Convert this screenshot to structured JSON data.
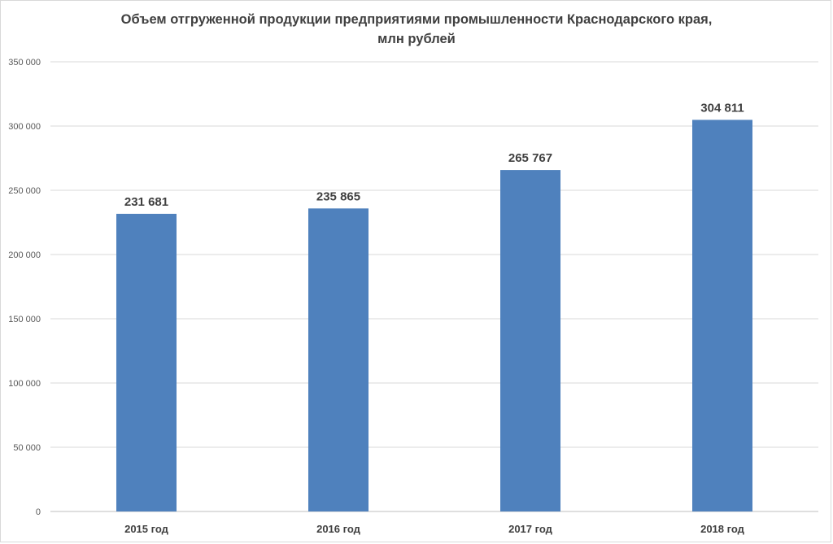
{
  "title": "Объем отгруженной продукции  предприятиями промышленности Краснодарского края,",
  "subtitle": "млн рублей",
  "colors": {
    "bar": "#4f81bd",
    "grid": "#d9d9d9",
    "axis": "#bfbfbf"
  },
  "chart_data": {
    "type": "bar",
    "title": "Объем отгруженной продукции  предприятиями промышленности Краснодарского края, млн рублей",
    "categories": [
      "2015 год",
      "2016 год",
      "2017 год",
      "2018 год"
    ],
    "values": [
      231681,
      235865,
      265767,
      304811
    ],
    "data_labels": [
      "231 681",
      "235 865",
      "265 767",
      "304 811"
    ],
    "ylim": [
      0,
      350000
    ],
    "yticks": [
      0,
      50000,
      100000,
      150000,
      200000,
      250000,
      300000,
      350000
    ],
    "ytick_labels": [
      "0",
      "50 000",
      "100 000",
      "150 000",
      "200 000",
      "250 000",
      "300 000",
      "350 000"
    ],
    "grid": true,
    "legend": "none"
  }
}
